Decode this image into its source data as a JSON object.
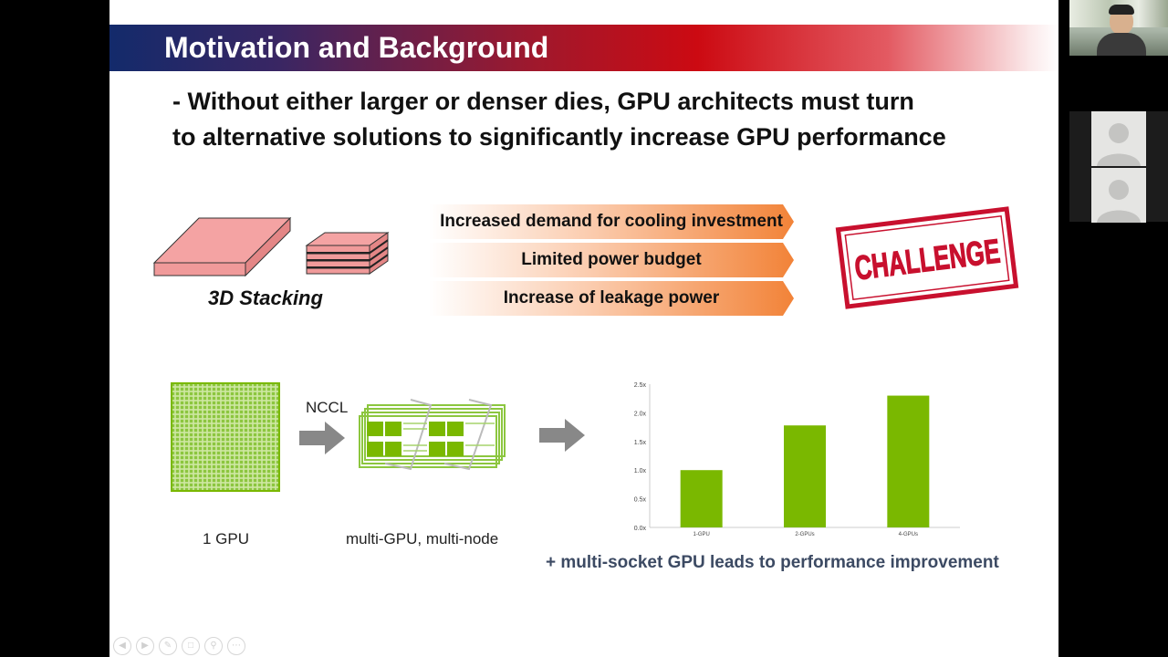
{
  "slide": {
    "title": "Motivation and Background",
    "bullet_line1": "- Without either larger or denser dies, GPU architects must turn",
    "bullet_line2": "to alternative solutions to significantly increase GPU performance",
    "stacking_label": "3D Stacking",
    "challenges": [
      "Increased demand for cooling investment",
      "Limited power budget",
      "Increase of leakage power"
    ],
    "challenge_stamp": "CHALLENGE",
    "nccl_label": "NCCL",
    "single_gpu_label": "1 GPU",
    "multi_gpu_label": "multi-GPU, multi-node",
    "caption": "+ multi-socket GPU leads to performance improvement",
    "colors": {
      "gpu_green": "#7ab800",
      "stamp_red": "#c8102e",
      "arrow_orange": "#f28338"
    }
  },
  "chart_data": {
    "type": "bar",
    "categories": [
      "1-GPU",
      "2-GPUs",
      "4-GPUs"
    ],
    "values": [
      1.0,
      1.78,
      2.3
    ],
    "y_ticks": [
      "0.0x",
      "0.5x",
      "1.0x",
      "1.5x",
      "2.0x",
      "2.5x"
    ],
    "ylim": [
      0,
      2.5
    ],
    "grid": false,
    "color": "#7ab800"
  },
  "toolbar": {
    "icons": [
      "prev-icon",
      "next-icon",
      "pen-icon",
      "slides-icon",
      "zoom-icon",
      "more-icon"
    ]
  },
  "video": {
    "self_view": "presenter-video",
    "participants": [
      "participant-avatar-1",
      "participant-avatar-2"
    ]
  }
}
